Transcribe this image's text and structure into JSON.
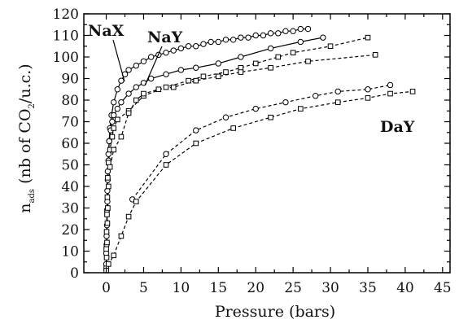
{
  "chart_data": {
    "type": "scatter",
    "xlabel": "Pressure (bars)",
    "ylabel": {
      "n": "n",
      "ads_sub": "ads",
      "rest_before_sub": " (nb of CO",
      "co2_sub": "2",
      "rest_after_sub": "/u.c.)"
    },
    "xlim": [
      -3,
      46
    ],
    "ylim": [
      0,
      120
    ],
    "x_ticks": [
      "0",
      "5",
      "10",
      "15",
      "20",
      "25",
      "30",
      "35",
      "40",
      "45"
    ],
    "y_ticks": [
      "0",
      "10",
      "20",
      "30",
      "40",
      "50",
      "60",
      "70",
      "80",
      "90",
      "100",
      "110",
      "120"
    ],
    "grid": false,
    "annotations": [
      "NaX",
      "NaY",
      "DaY"
    ],
    "series": [
      {
        "marker": "circle",
        "line": "solid",
        "points": [
          [
            0,
            4
          ],
          [
            0.05,
            13
          ],
          [
            0.1,
            22
          ],
          [
            0.15,
            33
          ],
          [
            0.2,
            43
          ],
          [
            0.3,
            52
          ],
          [
            0.4,
            61
          ],
          [
            0.5,
            67
          ],
          [
            0.7,
            73
          ],
          [
            1,
            79
          ],
          [
            1.5,
            85
          ],
          [
            2,
            89
          ],
          [
            2.5,
            92
          ],
          [
            3,
            94
          ],
          [
            4,
            96
          ],
          [
            5,
            98
          ],
          [
            6,
            100
          ],
          [
            7,
            101
          ],
          [
            8,
            102
          ],
          [
            9,
            103
          ],
          [
            10,
            104
          ],
          [
            11,
            105
          ],
          [
            12,
            105
          ],
          [
            13,
            106
          ],
          [
            14,
            107
          ],
          [
            15,
            107
          ],
          [
            16,
            108
          ],
          [
            17,
            108
          ],
          [
            18,
            109
          ],
          [
            19,
            109
          ],
          [
            20,
            110
          ],
          [
            21,
            110
          ],
          [
            22,
            111
          ],
          [
            23,
            111
          ],
          [
            24,
            112
          ],
          [
            25,
            112
          ],
          [
            26,
            113
          ],
          [
            27,
            113
          ]
        ]
      },
      {
        "marker": "circle",
        "line": "solid",
        "points": [
          [
            0,
            9
          ],
          [
            0.05,
            17
          ],
          [
            0.1,
            29
          ],
          [
            0.15,
            38
          ],
          [
            0.2,
            47
          ],
          [
            0.3,
            55
          ],
          [
            0.4,
            61
          ],
          [
            0.6,
            66
          ],
          [
            0.8,
            70
          ],
          [
            1,
            73
          ],
          [
            1.5,
            76
          ],
          [
            2,
            79
          ],
          [
            3,
            83
          ],
          [
            4,
            86
          ],
          [
            5,
            88
          ],
          [
            6,
            90
          ],
          [
            8,
            92
          ],
          [
            10,
            94
          ],
          [
            12,
            95
          ],
          [
            15,
            97
          ],
          [
            18,
            100
          ],
          [
            22,
            104
          ],
          [
            26,
            107
          ],
          [
            29,
            109
          ]
        ]
      },
      {
        "marker": "square",
        "line": "dashed",
        "points": [
          [
            0,
            11
          ],
          [
            0.05,
            19
          ],
          [
            0.1,
            27
          ],
          [
            0.15,
            35
          ],
          [
            0.2,
            44
          ],
          [
            0.3,
            51
          ],
          [
            0.5,
            57
          ],
          [
            0.8,
            63
          ],
          [
            1,
            67
          ],
          [
            1.5,
            71
          ],
          [
            3,
            75
          ],
          [
            5,
            82
          ],
          [
            8,
            86
          ],
          [
            11,
            89
          ],
          [
            13,
            91
          ],
          [
            16,
            93
          ],
          [
            18,
            95
          ],
          [
            20,
            97
          ],
          [
            23,
            100
          ],
          [
            25,
            102
          ],
          [
            30,
            105
          ],
          [
            35,
            109
          ]
        ]
      },
      {
        "marker": "square",
        "line": "dashed",
        "points": [
          [
            0,
            2
          ],
          [
            0.05,
            7
          ],
          [
            0.1,
            14
          ],
          [
            0.15,
            23
          ],
          [
            0.2,
            30
          ],
          [
            0.3,
            40
          ],
          [
            0.5,
            49
          ],
          [
            1,
            57
          ],
          [
            2,
            63
          ],
          [
            3,
            74
          ],
          [
            4,
            80
          ],
          [
            5,
            83
          ],
          [
            7,
            85
          ],
          [
            9,
            86
          ],
          [
            12,
            89
          ],
          [
            15,
            91
          ],
          [
            18,
            93
          ],
          [
            22,
            95
          ],
          [
            27,
            98
          ],
          [
            36,
            101
          ]
        ]
      },
      {
        "marker": "circle",
        "line": "dashed",
        "points": [
          [
            3.5,
            34
          ],
          [
            8,
            55
          ],
          [
            12,
            66
          ],
          [
            16,
            72
          ],
          [
            20,
            76
          ],
          [
            24,
            79
          ],
          [
            28,
            82
          ],
          [
            31,
            84
          ],
          [
            35,
            85
          ],
          [
            38,
            87
          ]
        ]
      },
      {
        "marker": "square",
        "line": "dashed",
        "points": [
          [
            0,
            1
          ],
          [
            0.3,
            4
          ],
          [
            1,
            8
          ],
          [
            2,
            17
          ],
          [
            3,
            26
          ],
          [
            4,
            33
          ],
          [
            8,
            50
          ],
          [
            12,
            60
          ],
          [
            17,
            67
          ],
          [
            22,
            72
          ],
          [
            26,
            76
          ],
          [
            31,
            79
          ],
          [
            35,
            81
          ],
          [
            38,
            83
          ],
          [
            41,
            84
          ]
        ]
      }
    ]
  }
}
